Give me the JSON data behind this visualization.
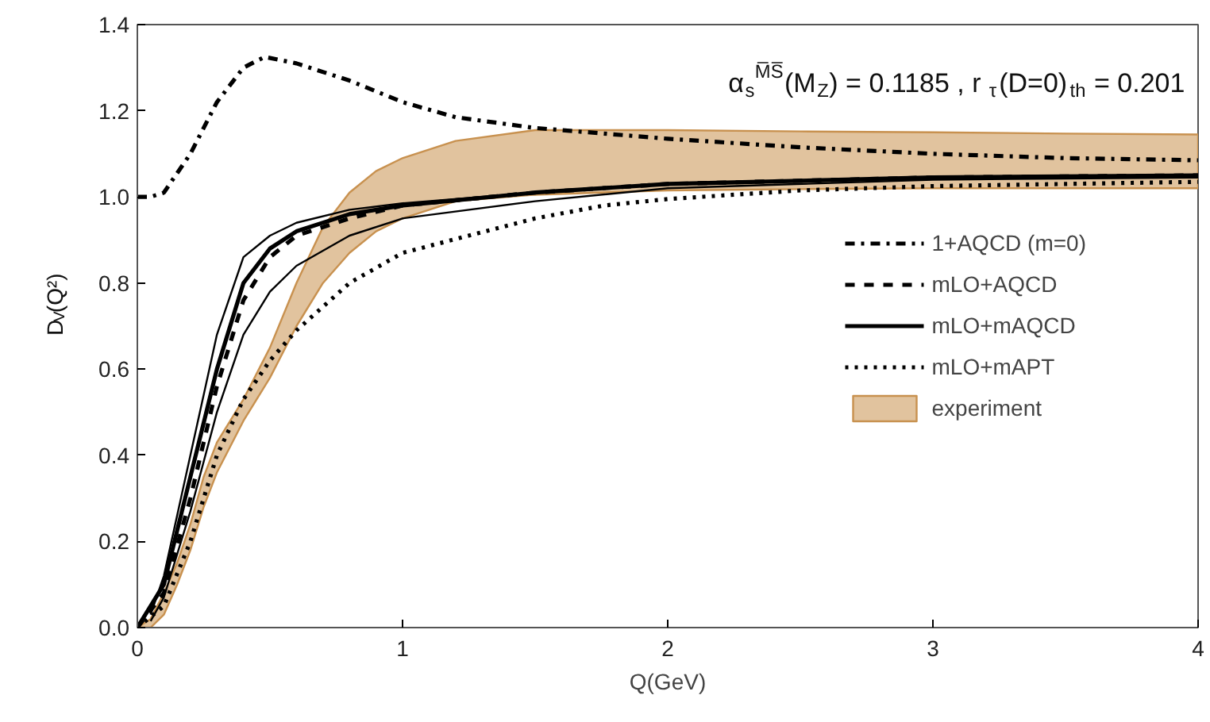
{
  "chart_data": {
    "type": "line",
    "xlabel": "Q(GeV)",
    "ylabel": "D$_{V}$(Q²)",
    "annotations": [
      "α$_{s}$$^{M̅S̅}$(M$_{Z}$) = 0.1185 , r$_{τ}$(D=0)$_{th}$ = 0.201"
    ],
    "xlim": [
      0,
      4
    ],
    "ylim": [
      0,
      1.4
    ],
    "xticks": [
      0,
      1,
      2,
      3,
      4
    ],
    "yticks": [
      {
        "value": 0,
        "label": "0.0"
      },
      {
        "value": 0.2,
        "label": "0.2"
      },
      {
        "value": 0.4,
        "label": "0.4"
      },
      {
        "value": 0.6,
        "label": "0.6"
      },
      {
        "value": 0.8,
        "label": "0.8"
      },
      {
        "value": 1.0,
        "label": "1.0"
      },
      {
        "value": 1.2,
        "label": "1.2"
      },
      {
        "value": 1.4,
        "label": "1.4"
      }
    ],
    "grid": false,
    "legend": "right",
    "series": [
      {
        "name": "experiment",
        "color": "#c8914f",
        "x": [
          0,
          0.05,
          0.1,
          0.15,
          0.2,
          0.25,
          0.3,
          0.4,
          0.5,
          0.6,
          0.7,
          0.8,
          0.9,
          1.0,
          1.2,
          1.5,
          2,
          2.5,
          3,
          3.5,
          4
        ],
        "values": [
          null,
          null,
          null,
          null,
          null,
          null,
          null,
          null,
          null,
          null,
          null,
          null,
          null,
          null,
          null,
          null,
          null,
          null,
          null,
          null,
          null
        ],
        "upper": [
          0,
          0.02,
          0.08,
          0.15,
          0.24,
          0.35,
          0.43,
          0.53,
          0.65,
          0.8,
          0.93,
          1.01,
          1.06,
          1.09,
          1.13,
          1.155,
          1.155,
          1.152,
          1.15,
          1.147,
          1.145
        ],
        "lower": [
          0,
          0,
          0.03,
          0.1,
          0.18,
          0.28,
          0.36,
          0.48,
          0.58,
          0.7,
          0.8,
          0.87,
          0.92,
          0.95,
          0.99,
          1.005,
          1.015,
          1.018,
          1.02,
          1.02,
          1.02
        ]
      },
      {
        "name": "1+AQCD (m=0)",
        "color": "#000000",
        "line_style": "dashdot",
        "x": [
          0,
          0.05,
          0.1,
          0.2,
          0.3,
          0.4,
          0.48,
          0.6,
          0.8,
          1.0,
          1.2,
          1.5,
          2,
          2.5,
          3,
          3.5,
          4
        ],
        "values": [
          1.0,
          1.0,
          1.01,
          1.1,
          1.22,
          1.3,
          1.325,
          1.31,
          1.27,
          1.22,
          1.185,
          1.16,
          1.135,
          1.115,
          1.1,
          1.09,
          1.085
        ]
      },
      {
        "name": "mLO+AQCD",
        "color": "#000000",
        "line_style": "dashed",
        "x": [
          0,
          0.1,
          0.2,
          0.3,
          0.4,
          0.5,
          0.6,
          0.8,
          1.0,
          1.5,
          2,
          3,
          4
        ],
        "values": [
          0,
          0.08,
          0.3,
          0.56,
          0.76,
          0.86,
          0.91,
          0.95,
          0.98,
          1.01,
          1.03,
          1.045,
          1.05
        ]
      },
      {
        "name": "mLO+mAQCD",
        "color": "#000000",
        "line_style": "solid",
        "x": [
          0,
          0.1,
          0.2,
          0.3,
          0.4,
          0.5,
          0.6,
          0.8,
          1.0,
          1.5,
          2,
          3,
          4
        ],
        "values": [
          0,
          0.1,
          0.35,
          0.6,
          0.8,
          0.88,
          0.92,
          0.96,
          0.98,
          1.01,
          1.03,
          1.045,
          1.05
        ]
      },
      {
        "color": "#000000",
        "line_style": "solid",
        "x": [
          0.05,
          0.1,
          0.2,
          0.3,
          0.4,
          0.5,
          0.6,
          0.8,
          1.0,
          1.5,
          2,
          3,
          4
        ],
        "values": [
          0.03,
          0.12,
          0.4,
          0.68,
          0.86,
          0.91,
          0.94,
          0.97,
          0.985,
          1.01,
          1.03,
          1.045,
          1.05
        ]
      },
      {
        "color": "#000000",
        "line_style": "solid",
        "x": [
          0.05,
          0.1,
          0.2,
          0.3,
          0.4,
          0.5,
          0.6,
          0.8,
          1.0,
          1.5,
          2,
          3,
          4
        ],
        "values": [
          0.015,
          0.07,
          0.27,
          0.5,
          0.68,
          0.78,
          0.84,
          0.91,
          0.95,
          0.99,
          1.02,
          1.04,
          1.045
        ]
      },
      {
        "name": "mLO+mAPT",
        "color": "#000000",
        "line_style": "dotted",
        "x": [
          0,
          0.1,
          0.2,
          0.3,
          0.4,
          0.5,
          0.6,
          0.8,
          1.0,
          1.5,
          1.76,
          2,
          2.5,
          3,
          4
        ],
        "values": [
          0,
          0.05,
          0.2,
          0.4,
          0.53,
          0.62,
          0.69,
          0.8,
          0.87,
          0.95,
          0.98,
          0.995,
          1.015,
          1.025,
          1.035
        ]
      }
    ]
  }
}
